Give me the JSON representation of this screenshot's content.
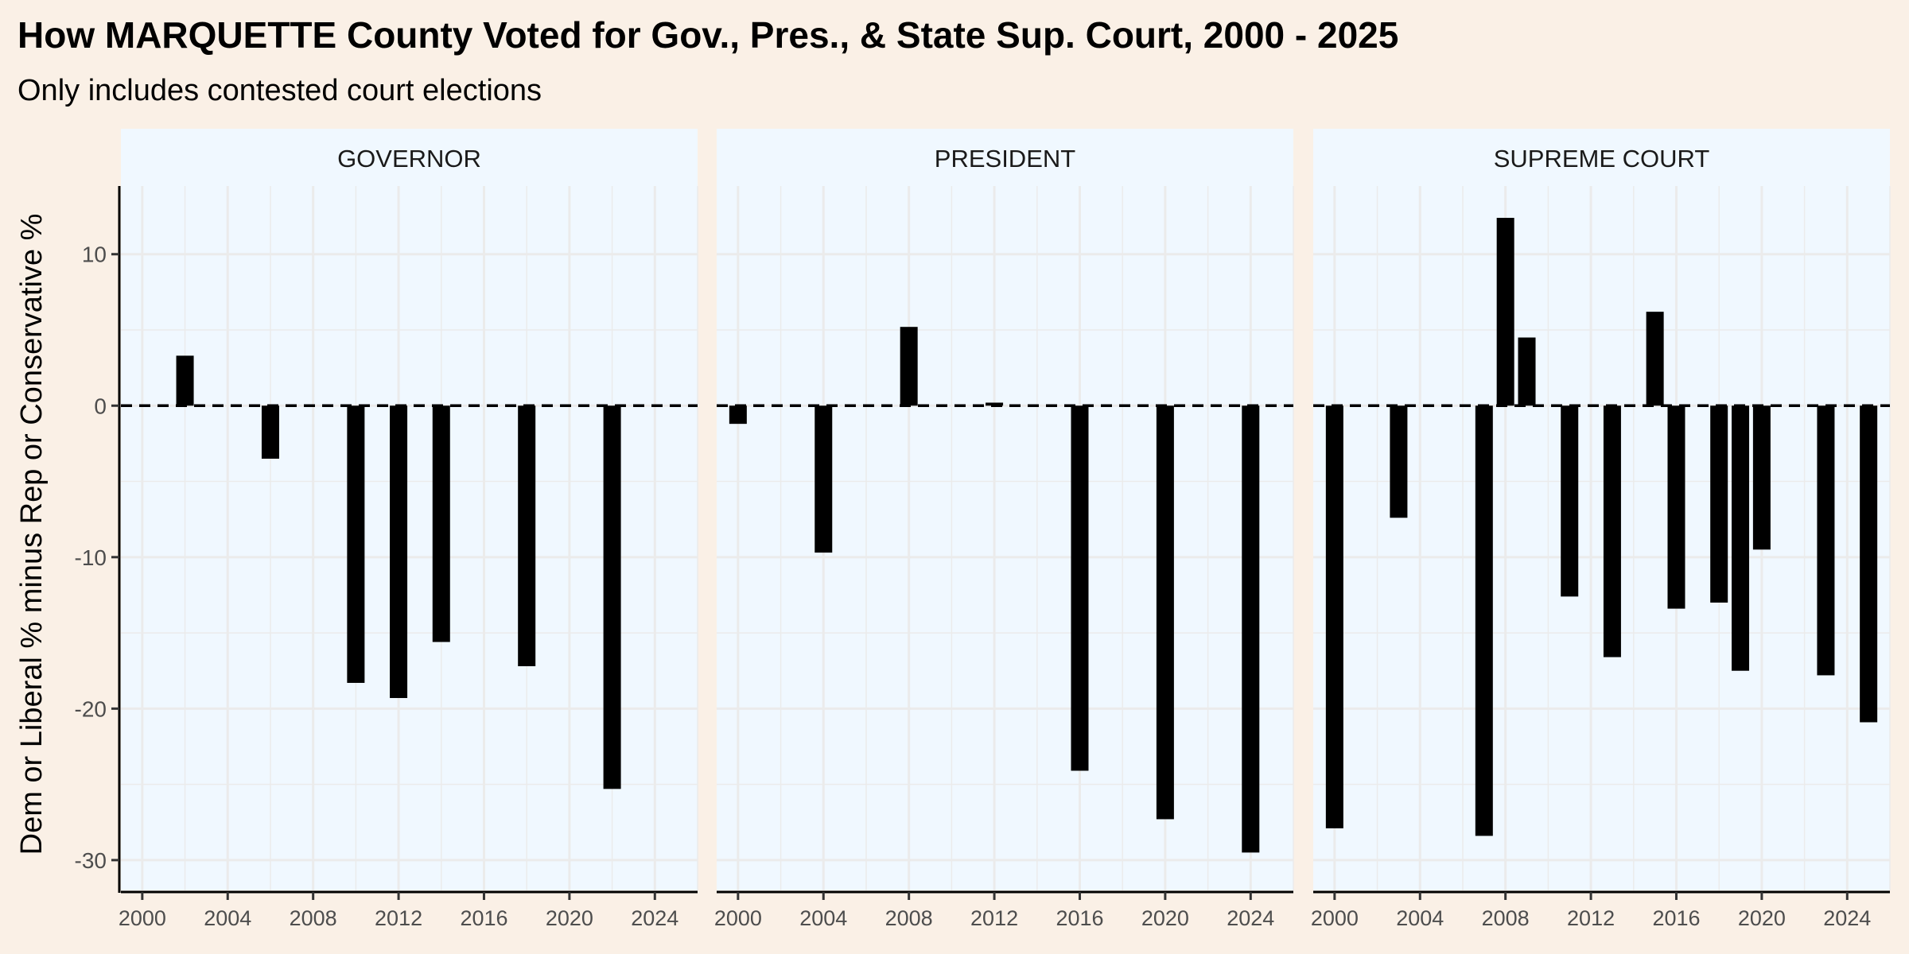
{
  "chart_data": {
    "type": "bar",
    "title": "How MARQUETTE County Voted for Gov., Pres., & State Sup. Court, 2000 - 2025",
    "subtitle": "Only includes contested court elections",
    "ylabel": "Dem or Liberal % minus Rep or Conservative %",
    "xlabel": "",
    "xlim": [
      1999,
      2026
    ],
    "ylim": [
      -32,
      14.5
    ],
    "x_ticks": [
      2000,
      2004,
      2008,
      2012,
      2016,
      2020,
      2024
    ],
    "y_ticks": [
      10,
      0,
      -10,
      -20,
      -30
    ],
    "reference_line": 0,
    "grid": true,
    "colors": {
      "page_background": "#faf0e6",
      "panel_background": "#f0f8ff",
      "strip_background": "#f0f8ff",
      "bar": "#000000",
      "grid": "#ebebeb",
      "text": "#000000"
    },
    "panels": [
      {
        "label": "GOVERNOR",
        "x": [
          2002,
          2006,
          2010,
          2012,
          2014,
          2018,
          2022
        ],
        "values": [
          3.3,
          -3.5,
          -18.3,
          -19.3,
          -15.6,
          -17.2,
          -25.3
        ]
      },
      {
        "label": "PRESIDENT",
        "x": [
          2000,
          2004,
          2008,
          2012,
          2016,
          2020,
          2024
        ],
        "values": [
          -1.2,
          -9.7,
          5.2,
          0.2,
          -24.1,
          -27.3,
          -29.5
        ]
      },
      {
        "label": "SUPREME COURT",
        "x": [
          2000,
          2003,
          2007,
          2008,
          2009,
          2011,
          2013,
          2015,
          2016,
          2018,
          2019,
          2020,
          2023,
          2025
        ],
        "values": [
          -27.9,
          -7.4,
          -28.4,
          12.4,
          4.5,
          -12.6,
          -16.6,
          6.2,
          -13.4,
          -13.0,
          -17.5,
          -9.5,
          -17.8,
          -20.9
        ]
      }
    ]
  }
}
